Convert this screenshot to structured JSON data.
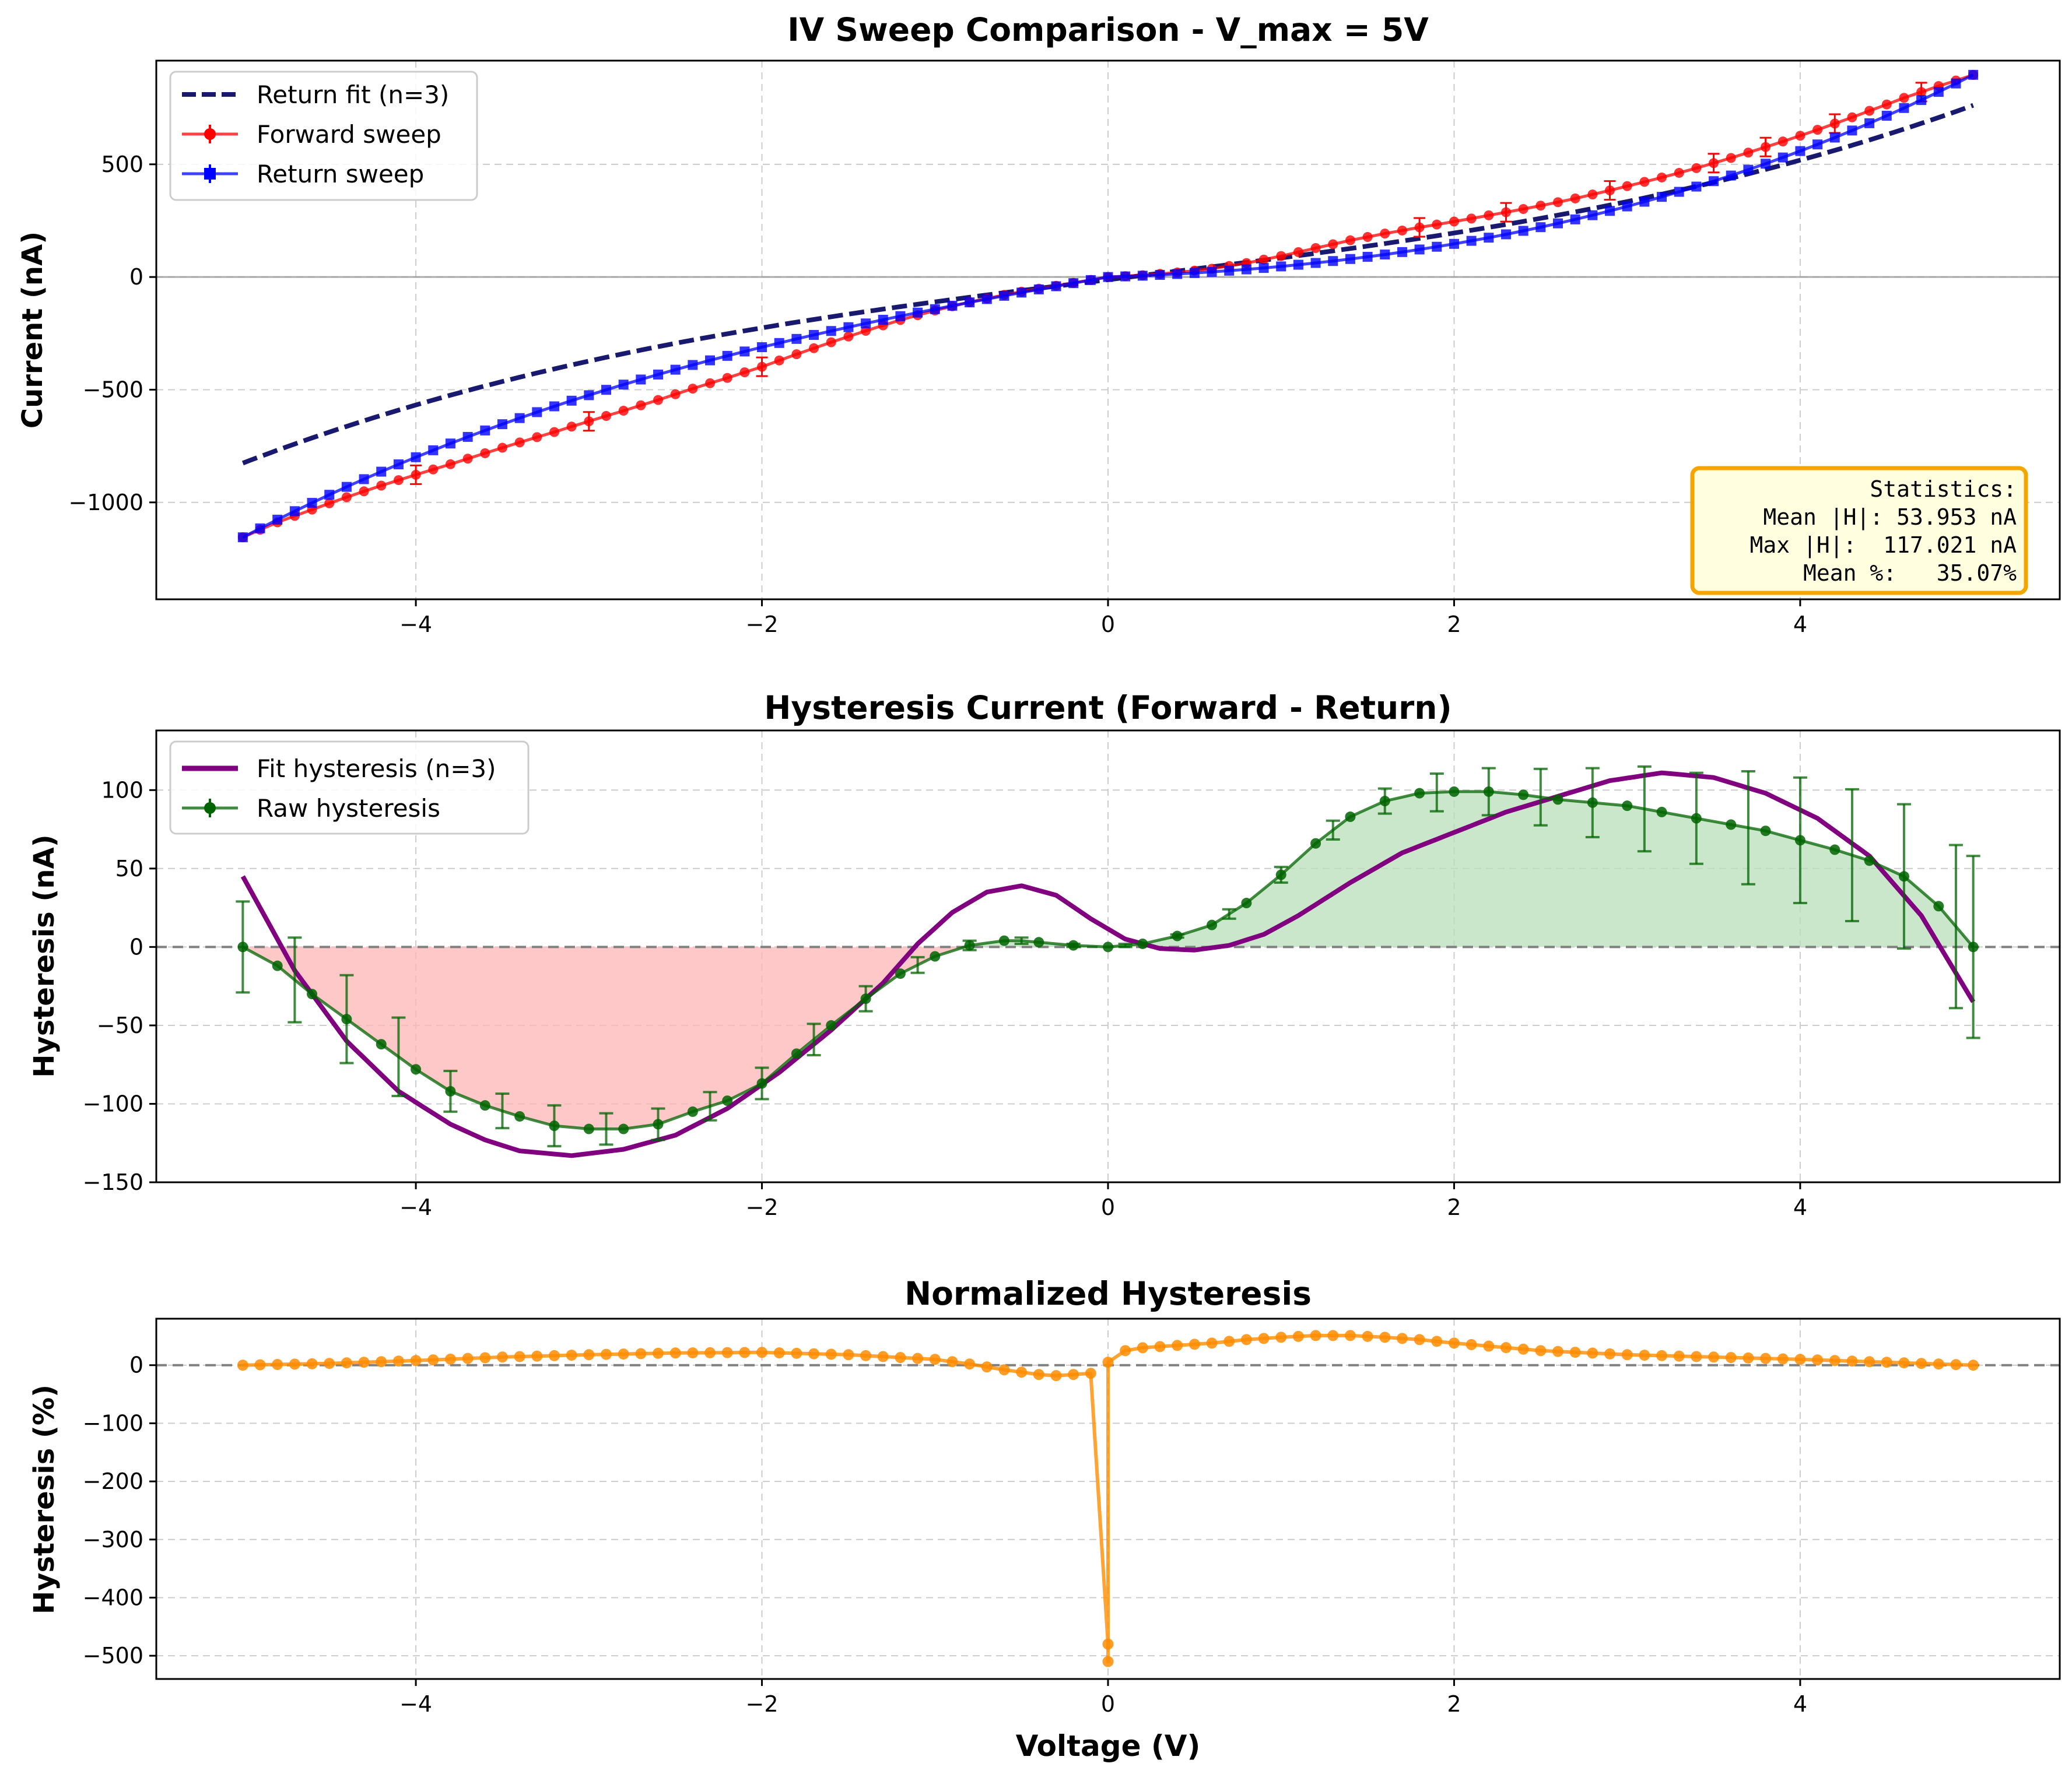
{
  "colors": {
    "forward": "#ff0000",
    "return": "#0000ff",
    "return_fit": "#191970",
    "raw_hysteresis": "#006400",
    "fit_hysteresis": "#800080",
    "negative_fill": "#ffb6b6",
    "positive_fill": "#b9dfb9",
    "normalized": "#ff8c00",
    "stats_box_fill": "#ffffe0",
    "stats_box_edge": "#f5a500"
  },
  "chart_data": [
    {
      "type": "line",
      "title": "IV Sweep Comparison - V_max = 5V",
      "xlabel": "",
      "ylabel": "Current (nA)",
      "xlim": [
        -5.5,
        5.5
      ],
      "ylim": [
        -1430,
        960
      ],
      "xticks": [
        -4,
        -2,
        0,
        2,
        4
      ],
      "xtick_labels": [
        "−4",
        "−2",
        "0",
        "2",
        "4"
      ],
      "yticks": [
        -1000,
        -500,
        0,
        500
      ],
      "ytick_labels": [
        "−1000",
        "−500",
        "0",
        "500"
      ],
      "grid": true,
      "legend_position": "top-left",
      "legend": [
        {
          "label": "Return fit (n=3)",
          "style": "dashed",
          "color": "#191970"
        },
        {
          "label": "Forward sweep",
          "style": "line-marker-errorbar",
          "color": "#ff0000"
        },
        {
          "label": "Return sweep",
          "style": "line-square-errorbar",
          "color": "#0000ff"
        }
      ],
      "series": [
        {
          "name": "Forward sweep",
          "shape": "forward_iv",
          "x_range": [
            -5,
            5
          ],
          "n_points": 101
        },
        {
          "name": "Return sweep",
          "shape": "return_iv",
          "x_range": [
            -5,
            5
          ],
          "n_points": 101
        },
        {
          "name": "Return fit (n=3)",
          "shape": "return_fit",
          "x_range": [
            -5,
            5
          ]
        }
      ],
      "stats_box": {
        "position": "bottom-right",
        "lines": [
          "Statistics:",
          "Mean |H|: 53.953 nA",
          "Max |H|:  117.021 nA",
          "Mean %:   35.07%"
        ]
      }
    },
    {
      "type": "line",
      "title": "Hysteresis Current (Forward - Return)",
      "xlabel": "",
      "ylabel": "Hysteresis (nA)",
      "xlim": [
        -5.5,
        5.5
      ],
      "ylim": [
        -150,
        138
      ],
      "xticks": [
        -4,
        -2,
        0,
        2,
        4
      ],
      "xtick_labels": [
        "−4",
        "−2",
        "0",
        "2",
        "4"
      ],
      "yticks": [
        -150,
        -100,
        -50,
        0,
        50,
        100
      ],
      "ytick_labels": [
        "−150",
        "−100",
        "−50",
        "0",
        "50",
        "100"
      ],
      "grid": true,
      "legend_position": "top-left",
      "legend": [
        {
          "label": "Fit hysteresis (n=3)",
          "style": "solid",
          "color": "#800080"
        },
        {
          "label": "Raw hysteresis",
          "style": "line-marker-errorbar",
          "color": "#006400"
        }
      ],
      "raw_hysteresis_anchors": {
        "x": [
          -5,
          -4.8,
          -4.6,
          -4.4,
          -4.2,
          -4,
          -3.8,
          -3.6,
          -3.4,
          -3.2,
          -3,
          -2.8,
          -2.6,
          -2.4,
          -2.2,
          -2,
          -1.8,
          -1.6,
          -1.4,
          -1.2,
          -1,
          -0.8,
          -0.6,
          -0.5,
          -0.4,
          -0.2,
          0,
          0.2,
          0.4,
          0.6,
          0.8,
          1,
          1.2,
          1.4,
          1.6,
          1.8,
          2,
          2.2,
          2.4,
          2.6,
          2.8,
          3,
          3.2,
          3.4,
          3.6,
          3.8,
          4,
          4.2,
          4.4,
          4.6,
          4.8,
          5
        ],
        "y": [
          0,
          -12,
          -30,
          -46,
          -62,
          -78,
          -92,
          -101,
          -108,
          -114,
          -116,
          -116,
          -113,
          -105,
          -98,
          -87,
          -68,
          -50,
          -33,
          -17,
          -6,
          1,
          4,
          4,
          3,
          1,
          0,
          2,
          7,
          14,
          28,
          46,
          66,
          83,
          93,
          98,
          99,
          99,
          97,
          94,
          92,
          90,
          86,
          82,
          78,
          74,
          68,
          62,
          55,
          45,
          26,
          0
        ]
      },
      "fit_hysteresis_anchors": {
        "x": [
          -5,
          -4.7,
          -4.4,
          -4.1,
          -3.8,
          -3.6,
          -3.4,
          -3.1,
          -2.8,
          -2.5,
          -2.2,
          -1.9,
          -1.6,
          -1.3,
          -1.1,
          -0.9,
          -0.7,
          -0.5,
          -0.3,
          -0.1,
          0.1,
          0.3,
          0.5,
          0.7,
          0.9,
          1.1,
          1.4,
          1.7,
          2,
          2.3,
          2.6,
          2.9,
          3.2,
          3.5,
          3.8,
          4.1,
          4.4,
          4.7,
          5
        ],
        "y": [
          45,
          -15,
          -60,
          -92,
          -113,
          -123,
          -130,
          -133,
          -129,
          -120,
          -103,
          -80,
          -53,
          -23,
          2,
          22,
          35,
          39,
          33,
          18,
          5,
          -1,
          -2,
          1,
          8,
          20,
          41,
          60,
          73,
          86,
          96,
          106,
          111,
          108,
          98,
          82,
          58,
          20,
          -35
        ]
      },
      "errorbar_half_widths": {
        "x": [
          -5,
          -4.7,
          -4.4,
          -4.1,
          -3.8,
          -3.5,
          -3.2,
          -2.9,
          -2.6,
          -2.3,
          -2,
          -1.7,
          -1.4,
          -1.1,
          -0.8,
          -0.5,
          -0.2,
          0.1,
          0.4,
          0.7,
          1,
          1.3,
          1.6,
          1.9,
          2.2,
          2.5,
          2.8,
          3.1,
          3.4,
          3.7,
          4,
          4.3,
          4.6,
          4.9,
          5
        ],
        "e": [
          29,
          27,
          28,
          25,
          13,
          11,
          13,
          10,
          10,
          9,
          10,
          10,
          8,
          5,
          3,
          2,
          1,
          1,
          1,
          3,
          5,
          6,
          8,
          12,
          15,
          18,
          22,
          27,
          29,
          36,
          40,
          42,
          46,
          52,
          58
        ]
      }
    },
    {
      "type": "line",
      "title": "Normalized Hysteresis",
      "xlabel": "Voltage (V)",
      "ylabel": "Hysteresis (%)",
      "xlim": [
        -5.5,
        5.5
      ],
      "ylim": [
        -540,
        80
      ],
      "xticks": [
        -4,
        -2,
        0,
        2,
        4
      ],
      "xtick_labels": [
        "−4",
        "−2",
        "0",
        "2",
        "4"
      ],
      "yticks": [
        -500,
        -400,
        -300,
        -200,
        -100,
        0
      ],
      "ytick_labels": [
        "−500",
        "−400",
        "−300",
        "−200",
        "−100",
        "0"
      ],
      "grid": true,
      "normalized_anchors": {
        "x": [
          -5,
          -4.5,
          -4,
          -3.5,
          -3,
          -2.5,
          -2,
          -1.5,
          -1,
          -0.8,
          -0.6,
          -0.4,
          -0.3,
          -0.2,
          -0.1,
          -0.05,
          0,
          0.05,
          0.1,
          0.2,
          0.4,
          0.6,
          0.8,
          1,
          1.2,
          1.4,
          1.6,
          1.8,
          2,
          2.5,
          3,
          3.5,
          4,
          4.5,
          5
        ],
        "y": [
          0,
          3,
          8,
          14,
          18,
          21,
          22,
          18,
          10,
          2,
          -8,
          -16,
          -18,
          -16,
          -14,
          -12,
          5,
          5,
          25,
          30,
          34,
          38,
          44,
          48,
          51,
          51,
          48,
          44,
          38,
          25,
          18,
          14,
          10,
          5,
          0
        ]
      },
      "spike_points": {
        "x": [
          0,
          0,
          0
        ],
        "y": [
          -480,
          -510,
          5
        ]
      }
    }
  ]
}
